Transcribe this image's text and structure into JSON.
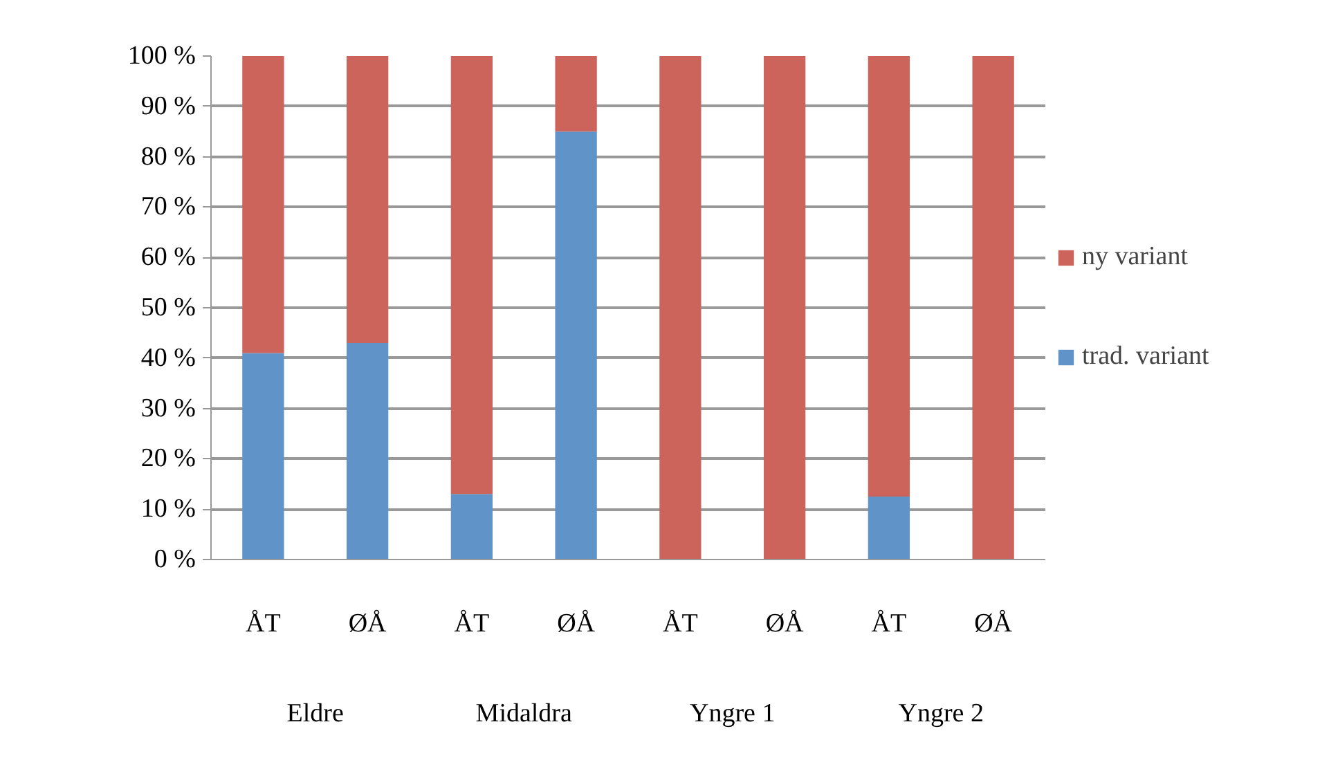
{
  "chart_data": {
    "type": "bar",
    "stacked": true,
    "categories": [
      "ÅT",
      "ØÅ",
      "ÅT",
      "ØÅ",
      "ÅT",
      "ØÅ",
      "ÅT",
      "ØÅ"
    ],
    "annotations": [
      "Eldre",
      "Midaldra",
      "Yngre 1",
      "Yngre 2"
    ],
    "series": [
      {
        "name": "trad. variant",
        "color": "#6094c8",
        "values": [
          41,
          43,
          13,
          85,
          0,
          0,
          12.5,
          0
        ]
      },
      {
        "name": "ny variant",
        "color": "#cc645c",
        "values": [
          59,
          57,
          87,
          15,
          100,
          100,
          87.5,
          100
        ]
      }
    ],
    "ylim": [
      0,
      100
    ],
    "yticks": [
      {
        "value": 0,
        "label": "0 %"
      },
      {
        "value": 10,
        "label": "10 %"
      },
      {
        "value": 20,
        "label": "20 %"
      },
      {
        "value": 30,
        "label": "30 %"
      },
      {
        "value": 40,
        "label": "40 %"
      },
      {
        "value": 50,
        "label": "50 %"
      },
      {
        "value": 60,
        "label": "60 %"
      },
      {
        "value": 70,
        "label": "70 %"
      },
      {
        "value": 80,
        "label": "80 %"
      },
      {
        "value": 90,
        "label": "90 %"
      },
      {
        "value": 100,
        "label": "100 %"
      }
    ],
    "grid": "y",
    "legend": "right"
  }
}
